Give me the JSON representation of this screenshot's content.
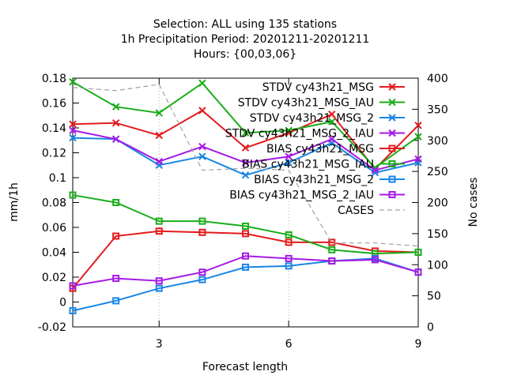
{
  "chart_data": {
    "type": "line",
    "title_lines": [
      "Selection: ALL using   135 stations",
      "1h Precipitation   Period: 20201211-20201211",
      "Hours: {00,03,06}"
    ],
    "xlabel": "Forecast length",
    "ylabel": "mm/1h",
    "y2label": "No cases",
    "x": [
      1,
      2,
      3,
      4,
      5,
      6,
      7,
      8,
      9
    ],
    "xlim": [
      1,
      9
    ],
    "xticks": [
      3,
      6,
      9
    ],
    "ylim": [
      -0.02,
      0.18
    ],
    "yticks": [
      "-0.02",
      "0",
      "0.02",
      "0.04",
      "0.06",
      "0.08",
      "0.1",
      "0.12",
      "0.14",
      "0.16",
      "0.18"
    ],
    "y2lim": [
      0,
      400
    ],
    "y2ticks": [
      "0",
      "50",
      "100",
      "150",
      "200",
      "250",
      "300",
      "350",
      "400"
    ],
    "legend_position": "top-right",
    "series": [
      {
        "name": "STDV cy43h21_MSG",
        "color": "#e41a1c",
        "marker": "x",
        "axis": "y1",
        "values": [
          0.143,
          0.144,
          0.134,
          0.154,
          0.124,
          0.136,
          0.151,
          0.107,
          0.142
        ]
      },
      {
        "name": "STDV cy43h21_MSG_IAU",
        "color": "#1aad1a",
        "marker": "x",
        "axis": "y1",
        "values": [
          0.177,
          0.157,
          0.152,
          0.176,
          0.136,
          0.138,
          0.145,
          0.108,
          0.133
        ]
      },
      {
        "name": "STDV cy43h21_MSG_2",
        "color": "#1a86e4",
        "marker": "x",
        "axis": "y1",
        "values": [
          0.132,
          0.131,
          0.11,
          0.117,
          0.102,
          0.112,
          0.128,
          0.104,
          0.112
        ]
      },
      {
        "name": "STDV cy43h21_MSG_2_IAU",
        "color": "#a51ae4",
        "marker": "x",
        "axis": "y1",
        "values": [
          0.138,
          0.131,
          0.113,
          0.125,
          0.112,
          0.117,
          0.131,
          0.106,
          0.115
        ]
      },
      {
        "name": "BIAS cy43h21_MSG",
        "color": "#e41a1c",
        "marker": "square",
        "axis": "y1",
        "values": [
          0.011,
          0.053,
          0.057,
          0.056,
          0.055,
          0.048,
          0.048,
          0.041,
          0.04
        ]
      },
      {
        "name": "BIAS cy43h21_MSG_IAU",
        "color": "#1aad1a",
        "marker": "square",
        "axis": "y1",
        "values": [
          0.086,
          0.08,
          0.065,
          0.065,
          0.061,
          0.054,
          0.042,
          0.039,
          0.04
        ]
      },
      {
        "name": "BIAS cy43h21_MSG_2",
        "color": "#1a86e4",
        "marker": "square",
        "axis": "y1",
        "values": [
          -0.007,
          0.001,
          0.011,
          0.018,
          0.028,
          0.029,
          0.033,
          0.035,
          0.024
        ]
      },
      {
        "name": "BIAS cy43h21_MSG_2_IAU",
        "color": "#a51ae4",
        "marker": "square",
        "axis": "y1",
        "values": [
          0.013,
          0.019,
          0.017,
          0.024,
          0.037,
          0.035,
          0.033,
          0.034,
          0.024
        ]
      },
      {
        "name": "CASES",
        "color": "#a0a0a0",
        "marker": "none",
        "dashed": true,
        "axis": "y2",
        "values": [
          385,
          380,
          390,
          252,
          255,
          252,
          135,
          135,
          130
        ]
      }
    ]
  }
}
